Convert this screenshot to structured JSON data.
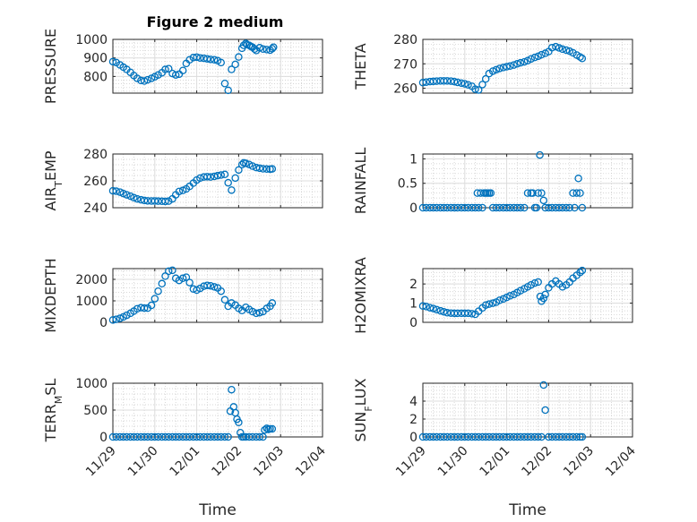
{
  "figure": {
    "title": "Figure 2 medium"
  },
  "chart_data": [
    {
      "type": "scatter",
      "ylabel": "PRESSURE",
      "title": "Figure 2 medium",
      "xlabel": "",
      "ylim": [
        710,
        1000
      ],
      "yticks": [
        800,
        900,
        1000
      ],
      "xlim": [
        "11/29",
        "12/04"
      ],
      "grid": "major+minor",
      "x": [
        0.0,
        0.08,
        0.17,
        0.25,
        0.33,
        0.42,
        0.5,
        0.58,
        0.67,
        0.75,
        0.83,
        0.92,
        1.0,
        1.08,
        1.17,
        1.25,
        1.33,
        1.42,
        1.5,
        1.58,
        1.67,
        1.75,
        1.83,
        1.92,
        2.0,
        2.08,
        2.17,
        2.25,
        2.33,
        2.42,
        2.5,
        2.58,
        2.67,
        2.75,
        2.83,
        2.92,
        3.0,
        3.08,
        3.12,
        3.17,
        3.2,
        3.25,
        3.29,
        3.33,
        3.38,
        3.42,
        3.5,
        3.58,
        3.67,
        3.75,
        3.8,
        3.83
      ],
      "y": [
        880,
        875,
        862,
        850,
        838,
        822,
        805,
        790,
        778,
        775,
        782,
        790,
        798,
        808,
        820,
        838,
        842,
        816,
        808,
        812,
        832,
        870,
        890,
        902,
        904,
        900,
        898,
        895,
        892,
        890,
        885,
        875,
        762,
        725,
        838,
        865,
        905,
        952,
        968,
        978,
        972,
        968,
        962,
        958,
        948,
        940,
        955,
        948,
        945,
        942,
        950,
        958
      ]
    },
    {
      "type": "scatter",
      "ylabel": "THETA",
      "xlabel": "",
      "ylim": [
        258,
        280
      ],
      "yticks": [
        260,
        270,
        280
      ],
      "xlim": [
        "11/29",
        "12/04"
      ],
      "grid": "major+minor",
      "x": [
        0.0,
        0.08,
        0.17,
        0.25,
        0.33,
        0.42,
        0.5,
        0.58,
        0.67,
        0.75,
        0.83,
        0.92,
        1.0,
        1.08,
        1.17,
        1.25,
        1.33,
        1.42,
        1.5,
        1.58,
        1.67,
        1.75,
        1.83,
        1.92,
        2.0,
        2.08,
        2.17,
        2.25,
        2.33,
        2.42,
        2.5,
        2.58,
        2.67,
        2.75,
        2.83,
        2.92,
        3.0,
        3.08,
        3.17,
        3.25,
        3.33,
        3.42,
        3.5,
        3.58,
        3.67,
        3.75,
        3.8
      ],
      "y": [
        262.3,
        262.5,
        262.7,
        262.8,
        262.9,
        263.0,
        263.0,
        263.0,
        262.9,
        262.7,
        262.4,
        262.1,
        261.8,
        261.4,
        260.8,
        259.6,
        259.3,
        261.5,
        263.8,
        266.0,
        267.0,
        267.6,
        268.1,
        268.5,
        268.8,
        269.1,
        269.5,
        270.0,
        270.4,
        270.8,
        271.3,
        272.0,
        272.6,
        273.1,
        273.7,
        274.3,
        275.0,
        276.6,
        277.0,
        276.5,
        276.0,
        275.6,
        275.2,
        274.5,
        273.6,
        272.8,
        272.2
      ]
    },
    {
      "type": "scatter",
      "ylabel": "AIR_TEMP",
      "xlabel": "",
      "ylim": [
        240,
        280
      ],
      "yticks": [
        240,
        260,
        280
      ],
      "xlim": [
        "11/29",
        "12/04"
      ],
      "grid": "major+minor",
      "x": [
        0.0,
        0.08,
        0.17,
        0.25,
        0.33,
        0.42,
        0.5,
        0.58,
        0.67,
        0.75,
        0.83,
        0.92,
        1.0,
        1.08,
        1.17,
        1.25,
        1.33,
        1.42,
        1.5,
        1.58,
        1.67,
        1.75,
        1.83,
        1.92,
        2.0,
        2.08,
        2.17,
        2.25,
        2.33,
        2.42,
        2.5,
        2.58,
        2.67,
        2.75,
        2.83,
        2.92,
        3.0,
        3.08,
        3.12,
        3.17,
        3.25,
        3.33,
        3.42,
        3.5,
        3.58,
        3.67,
        3.75,
        3.8
      ],
      "y": [
        252.6,
        252.3,
        251.6,
        250.6,
        249.6,
        248.6,
        247.5,
        246.6,
        245.9,
        245.4,
        245.1,
        245.0,
        245.0,
        244.9,
        244.8,
        244.7,
        244.9,
        246.6,
        249.6,
        252.1,
        252.9,
        254.0,
        255.9,
        258.3,
        260.6,
        262.1,
        262.9,
        263.1,
        262.9,
        263.3,
        263.9,
        264.3,
        264.8,
        258.6,
        253.1,
        262.1,
        268.1,
        272.1,
        273.4,
        273.1,
        272.2,
        271.0,
        269.9,
        269.4,
        269.0,
        268.8,
        268.7,
        268.9
      ]
    },
    {
      "type": "scatter",
      "ylabel": "RAINFALL",
      "xlabel": "",
      "ylim": [
        0,
        1.1
      ],
      "yticks": [
        0,
        0.5,
        1
      ],
      "xlim": [
        "11/29",
        "12/04"
      ],
      "grid": "major+minor",
      "x": [
        0.0,
        0.08,
        0.17,
        0.25,
        0.33,
        0.42,
        0.5,
        0.58,
        0.67,
        0.75,
        0.83,
        0.92,
        1.0,
        1.08,
        1.17,
        1.25,
        1.3,
        1.33,
        1.38,
        1.42,
        1.46,
        1.5,
        1.54,
        1.58,
        1.62,
        1.67,
        1.75,
        1.83,
        1.92,
        2.0,
        2.08,
        2.17,
        2.25,
        2.33,
        2.42,
        2.5,
        2.58,
        2.62,
        2.67,
        2.71,
        2.75,
        2.79,
        2.83,
        2.88,
        2.92,
        3.0,
        3.08,
        3.17,
        3.25,
        3.33,
        3.42,
        3.5,
        3.58,
        3.62,
        3.67,
        3.71,
        3.75,
        3.8
      ],
      "y": [
        0,
        0,
        0,
        0,
        0,
        0,
        0,
        0,
        0,
        0,
        0,
        0,
        0,
        0,
        0,
        0,
        0.3,
        0,
        0.3,
        0,
        0.3,
        0.3,
        0.3,
        0.3,
        0.3,
        0,
        0,
        0,
        0,
        0,
        0,
        0,
        0,
        0,
        0,
        0.3,
        0.3,
        0.3,
        0,
        0,
        0.3,
        1.08,
        0.3,
        0.15,
        0,
        0,
        0,
        0,
        0,
        0,
        0,
        0,
        0.3,
        0,
        0.3,
        0.6,
        0.3,
        0
      ]
    },
    {
      "type": "scatter",
      "ylabel": "MIXDEPTH",
      "xlabel": "",
      "ylim": [
        0,
        2500
      ],
      "yticks": [
        0,
        1000,
        2000
      ],
      "xlim": [
        "11/29",
        "12/04"
      ],
      "grid": "major+minor",
      "x": [
        0.0,
        0.08,
        0.17,
        0.25,
        0.33,
        0.42,
        0.5,
        0.58,
        0.67,
        0.75,
        0.83,
        0.92,
        1.0,
        1.08,
        1.17,
        1.25,
        1.33,
        1.42,
        1.5,
        1.58,
        1.67,
        1.75,
        1.83,
        1.92,
        2.0,
        2.08,
        2.17,
        2.25,
        2.33,
        2.42,
        2.5,
        2.58,
        2.67,
        2.75,
        2.83,
        2.92,
        3.0,
        3.08,
        3.17,
        3.25,
        3.33,
        3.42,
        3.5,
        3.58,
        3.67,
        3.75,
        3.8
      ],
      "y": [
        110,
        140,
        190,
        250,
        330,
        420,
        520,
        630,
        680,
        660,
        660,
        790,
        1100,
        1450,
        1800,
        2150,
        2380,
        2420,
        2050,
        1950,
        2050,
        2100,
        1850,
        1550,
        1500,
        1580,
        1680,
        1720,
        1700,
        1650,
        1600,
        1450,
        1050,
        750,
        900,
        800,
        650,
        550,
        700,
        600,
        500,
        420,
        450,
        500,
        650,
        750,
        900
      ]
    },
    {
      "type": "scatter",
      "ylabel": "H2OMIXRA",
      "xlabel": "",
      "ylim": [
        0,
        2.8
      ],
      "yticks": [
        0,
        1,
        2
      ],
      "xlim": [
        "11/29",
        "12/04"
      ],
      "grid": "major+minor",
      "x": [
        0.0,
        0.08,
        0.17,
        0.25,
        0.33,
        0.42,
        0.5,
        0.58,
        0.67,
        0.75,
        0.83,
        0.92,
        1.0,
        1.08,
        1.17,
        1.25,
        1.33,
        1.42,
        1.5,
        1.58,
        1.67,
        1.75,
        1.83,
        1.92,
        2.0,
        2.08,
        2.17,
        2.25,
        2.33,
        2.42,
        2.5,
        2.58,
        2.67,
        2.75,
        2.8,
        2.83,
        2.88,
        2.92,
        3.0,
        3.08,
        3.17,
        3.25,
        3.33,
        3.42,
        3.5,
        3.58,
        3.67,
        3.75,
        3.8
      ],
      "y": [
        0.85,
        0.82,
        0.76,
        0.72,
        0.66,
        0.6,
        0.55,
        0.5,
        0.48,
        0.47,
        0.47,
        0.47,
        0.47,
        0.47,
        0.45,
        0.42,
        0.58,
        0.75,
        0.9,
        0.95,
        1.0,
        1.05,
        1.15,
        1.22,
        1.3,
        1.38,
        1.45,
        1.55,
        1.65,
        1.75,
        1.85,
        1.95,
        2.05,
        2.1,
        1.35,
        1.1,
        1.25,
        1.45,
        1.8,
        2.0,
        2.15,
        2.0,
        1.85,
        1.95,
        2.1,
        2.3,
        2.45,
        2.6,
        2.7
      ]
    },
    {
      "type": "scatter",
      "ylabel": "TERR_MSL",
      "xlabel": "Time",
      "ylim": [
        0,
        1000
      ],
      "yticks": [
        0,
        500,
        1000
      ],
      "xlim": [
        "11/29",
        "12/04"
      ],
      "xticks": [
        "11/29",
        "11/30",
        "12/01",
        "12/02",
        "12/03",
        "12/04"
      ],
      "grid": "major+minor",
      "x": [
        0.0,
        0.08,
        0.17,
        0.25,
        0.33,
        0.42,
        0.5,
        0.58,
        0.67,
        0.75,
        0.83,
        0.92,
        1.0,
        1.08,
        1.17,
        1.25,
        1.33,
        1.42,
        1.5,
        1.58,
        1.67,
        1.75,
        1.83,
        1.92,
        2.0,
        2.08,
        2.17,
        2.25,
        2.33,
        2.42,
        2.5,
        2.58,
        2.67,
        2.75,
        2.8,
        2.83,
        2.88,
        2.92,
        2.96,
        3.0,
        3.04,
        3.08,
        3.12,
        3.17,
        3.25,
        3.33,
        3.42,
        3.5,
        3.58,
        3.62,
        3.67,
        3.71,
        3.75,
        3.8
      ],
      "y": [
        0,
        0,
        0,
        0,
        0,
        0,
        0,
        0,
        0,
        0,
        0,
        0,
        0,
        0,
        0,
        0,
        0,
        0,
        0,
        0,
        0,
        0,
        0,
        0,
        0,
        0,
        0,
        0,
        0,
        0,
        0,
        0,
        0,
        0,
        480,
        880,
        560,
        450,
        330,
        270,
        80,
        0,
        0,
        0,
        0,
        0,
        0,
        0,
        0,
        130,
        160,
        140,
        150,
        150
      ]
    },
    {
      "type": "scatter",
      "ylabel": "SUN_FLUX",
      "xlabel": "Time",
      "ylim": [
        0,
        6
      ],
      "yticks": [
        0,
        2,
        4
      ],
      "xlim": [
        "11/29",
        "12/04"
      ],
      "xticks": [
        "11/29",
        "11/30",
        "12/01",
        "12/02",
        "12/03",
        "12/04"
      ],
      "grid": "major+minor",
      "x": [
        0.0,
        0.08,
        0.17,
        0.25,
        0.33,
        0.42,
        0.5,
        0.58,
        0.67,
        0.75,
        0.83,
        0.92,
        1.0,
        1.08,
        1.17,
        1.25,
        1.33,
        1.42,
        1.5,
        1.58,
        1.67,
        1.75,
        1.83,
        1.92,
        2.0,
        2.08,
        2.17,
        2.25,
        2.33,
        2.42,
        2.5,
        2.58,
        2.67,
        2.75,
        2.83,
        2.88,
        2.92,
        3.0,
        3.08,
        3.17,
        3.25,
        3.33,
        3.42,
        3.5,
        3.58,
        3.67,
        3.75,
        3.8
      ],
      "y": [
        0,
        0,
        0,
        0,
        0,
        0,
        0,
        0,
        0,
        0,
        0,
        0,
        0,
        0,
        0,
        0,
        0,
        0,
        0,
        0,
        0,
        0,
        0,
        0,
        0,
        0,
        0,
        0,
        0,
        0,
        0,
        0,
        0,
        0,
        0,
        5.8,
        3.0,
        0,
        0,
        0,
        0,
        0,
        0,
        0,
        0,
        0,
        0,
        0
      ]
    }
  ]
}
